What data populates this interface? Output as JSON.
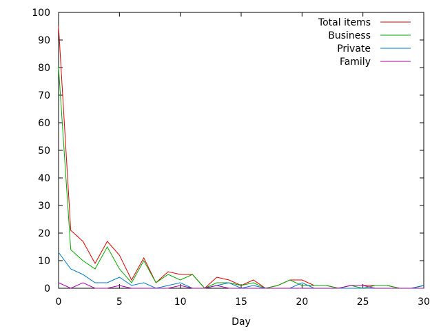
{
  "chart_data": {
    "type": "line",
    "title": "",
    "xlabel": "Day",
    "ylabel": "",
    "xlim": [
      0,
      30
    ],
    "ylim": [
      0,
      100
    ],
    "x_ticks": [
      0,
      5,
      10,
      15,
      20,
      25,
      30
    ],
    "y_ticks": [
      0,
      10,
      20,
      30,
      40,
      50,
      60,
      70,
      80,
      90,
      100
    ],
    "grid": false,
    "legend_position": "top-right",
    "x": [
      0,
      1,
      2,
      3,
      4,
      5,
      6,
      7,
      8,
      9,
      10,
      11,
      12,
      13,
      14,
      15,
      16,
      17,
      18,
      19,
      20,
      21,
      22,
      23,
      24,
      25,
      26,
      27,
      28,
      29,
      30
    ],
    "series": [
      {
        "name": "Total items",
        "color": "#dd0000",
        "values": [
          95,
          21,
          17,
          9,
          17,
          12,
          3,
          11,
          2,
          6,
          5,
          5,
          0,
          4,
          3,
          1,
          3,
          0,
          1,
          3,
          3,
          1,
          1,
          0,
          1,
          1,
          1,
          1,
          0,
          0,
          1
        ]
      },
      {
        "name": "Business",
        "color": "#00aa00",
        "values": [
          80,
          14,
          10,
          7,
          15,
          7,
          2,
          10,
          2,
          5,
          3,
          5,
          0,
          2,
          2,
          1,
          2,
          0,
          1,
          3,
          1,
          1,
          1,
          0,
          1,
          0,
          1,
          1,
          0,
          0,
          1
        ]
      },
      {
        "name": "Private",
        "color": "#0077cc",
        "values": [
          13,
          7,
          5,
          2,
          2,
          4,
          1,
          2,
          0,
          1,
          2,
          0,
          0,
          1,
          2,
          0,
          1,
          0,
          0,
          0,
          2,
          0,
          0,
          0,
          0,
          0,
          0,
          0,
          0,
          0,
          1
        ]
      },
      {
        "name": "Family",
        "color": "#aa00aa",
        "values": [
          2,
          0,
          2,
          0,
          0,
          1,
          0,
          0,
          0,
          0,
          1,
          0,
          0,
          1,
          0,
          0,
          0,
          0,
          0,
          0,
          0,
          0,
          0,
          0,
          1,
          1,
          0,
          0,
          0,
          0,
          0
        ]
      }
    ]
  }
}
